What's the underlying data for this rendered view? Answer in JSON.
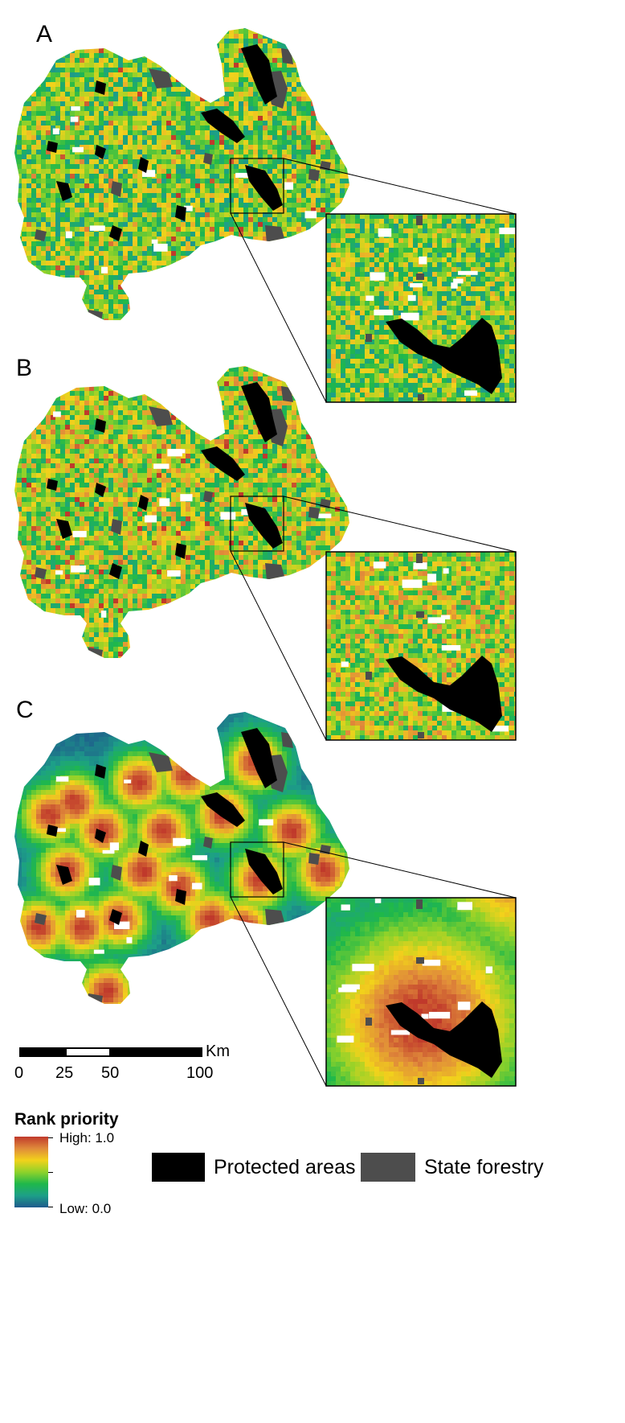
{
  "panels": [
    {
      "letter": "A",
      "style": "mixed"
    },
    {
      "letter": "B",
      "style": "mixed-warm"
    },
    {
      "letter": "C",
      "style": "smooth"
    }
  ],
  "scale_bar": {
    "unit": "Km",
    "ticks": [
      "0",
      "25",
      "50",
      "100"
    ]
  },
  "legend": {
    "title": "Rank priority",
    "high_label": "High: 1.0",
    "low_label": "Low: 0.0",
    "ramp_colors": [
      "#c0392b",
      "#e08a3a",
      "#f2d21b",
      "#8fd22a",
      "#1fb84a",
      "#1d9f88",
      "#1e5a8c"
    ],
    "items": [
      {
        "label": "Protected areas",
        "color": "#000000"
      },
      {
        "label": "State forestry",
        "color": "#4d4d4d"
      }
    ]
  }
}
